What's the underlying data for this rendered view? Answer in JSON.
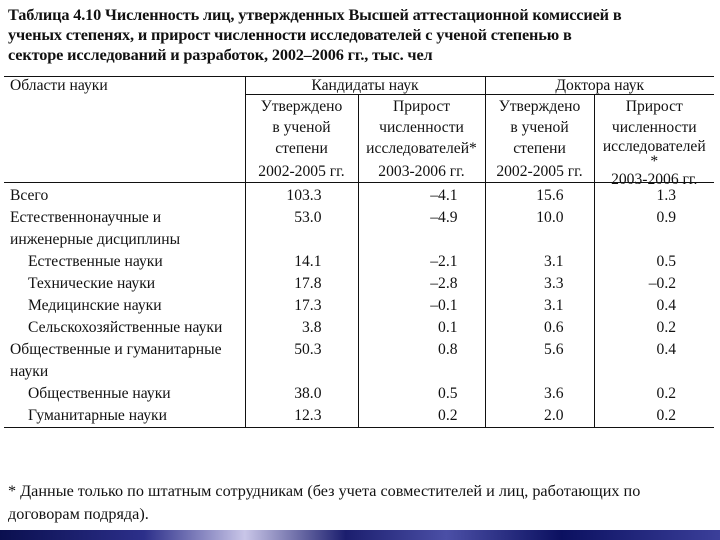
{
  "title": {
    "line1": "Таблица 4.10 Численность лиц, утвержденных Высшей аттестационной комиссией в",
    "line2": "ученых степенях, и прирост численности  исследователей с ученой степенью в",
    "line3": "секторе исследований и разработок, 2002–2006 гг., тыс. чел"
  },
  "table": {
    "areas_header": "Области науки",
    "groups": [
      "Кандидаты наук",
      "Доктора наук"
    ],
    "subheaders": [
      {
        "lines": [
          "Утверждено",
          "в ученой",
          "степени"
        ],
        "period": "2002-2005 гг."
      },
      {
        "lines": [
          "Прирост",
          "численности",
          "исследователей*"
        ],
        "period": "2003-2006 гг."
      },
      {
        "lines": [
          "Утверждено",
          "в ученой",
          "степени"
        ],
        "period": "2002-2005 гг."
      },
      {
        "lines": [
          "Прирост",
          "численности",
          "исследователей",
          "*"
        ],
        "period": "2003-2006 гг."
      }
    ],
    "rows": [
      {
        "label": [
          "Всего"
        ],
        "values": [
          "103.3",
          "–4.1",
          "15.6",
          "1.3"
        ]
      },
      {
        "label": [
          "Естественнонаучные и",
          "инженерные дисциплины"
        ],
        "values": [
          "53.0",
          "–4.9",
          "10.0",
          "0.9"
        ]
      },
      {
        "label": [
          "Естественные науки"
        ],
        "values": [
          "14.1",
          "–2.1",
          "3.1",
          "0.5"
        ]
      },
      {
        "label": [
          "Технические науки"
        ],
        "values": [
          "17.8",
          "–2.8",
          "3.3",
          "–0.2"
        ]
      },
      {
        "label": [
          "Медицинские науки"
        ],
        "values": [
          "17.3",
          "–0.1",
          "3.1",
          "0.4"
        ]
      },
      {
        "label": [
          "Сельскохозяйственные науки"
        ],
        "values": [
          "3.8",
          "0.1",
          "0.6",
          "0.2"
        ]
      },
      {
        "label": [
          "Общественные и гуманитарные",
          "науки"
        ],
        "values": [
          "50.3",
          "0.8",
          "5.6",
          "0.4"
        ]
      },
      {
        "label": [
          "Общественные науки"
        ],
        "values": [
          "38.0",
          "0.5",
          "3.6",
          "0.2"
        ]
      },
      {
        "label": [
          "Гуманитарные науки"
        ],
        "values": [
          "12.3",
          "0.2",
          "2.0",
          "0.2"
        ]
      }
    ]
  },
  "footnote": {
    "line1": "* Данные только по штатным сотрудникам (без учета совместителей и лиц, работающих по",
    "line2": "договорам подряда)."
  }
}
